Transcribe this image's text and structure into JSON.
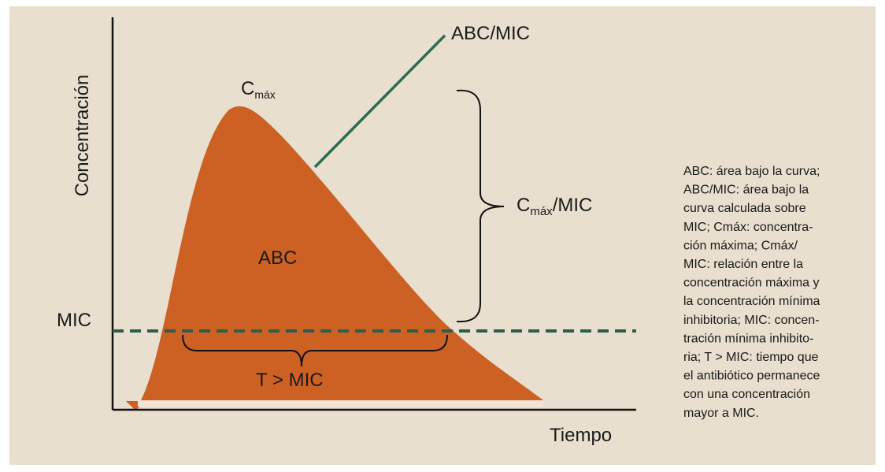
{
  "axes": {
    "y_label": "Concentración",
    "x_label": "Tiempo"
  },
  "labels": {
    "cmax": {
      "main": "C",
      "sub": "máx"
    },
    "abc_mic": "ABC/MIC",
    "abc": "ABC",
    "cmax_mic": {
      "main": "C",
      "sub": "máx",
      "rest": "/MIC"
    },
    "mic": "MIC",
    "t_mic": "T > MIC"
  },
  "caption": [
    "ABC: área bajo la curva;",
    "ABC/MIC: área bajo la",
    "curva calculada sobre",
    "MIC; Cmáx: concentra-",
    "ción máxima; Cmáx/",
    "MIC: relación entre la",
    "concentración máxima y",
    "la concentración mínima",
    "inhibitoria; MIC: concen-",
    "tración mínima inhibito-",
    "ria; T > MIC: tiempo que",
    "el antibiótico permanece",
    "con una concentración",
    "mayor a MIC."
  ]
}
